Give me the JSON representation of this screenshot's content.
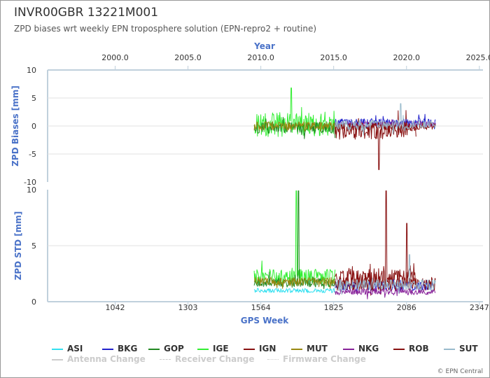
{
  "header": {
    "title": "INVR00GBR 13221M001",
    "subtitle": "ZPD biases wrt weekly EPN troposphere solution (EPN-repro2 + routine)"
  },
  "credit": "© EPN Central",
  "colors": {
    "ASI": "#33e0f0",
    "BKG": "#2222cc",
    "GOP": "#228822",
    "IGE": "#33ee33",
    "IGN": "#881111",
    "MUT": "#998811",
    "NKG": "#882299",
    "ROB": "#881111",
    "SUT": "#99bbcc",
    "muted": "#cccccc",
    "axis_title": "#4a72c8"
  },
  "legend": {
    "items": [
      {
        "label": "ASI",
        "style": "solid"
      },
      {
        "label": "BKG",
        "style": "solid"
      },
      {
        "label": "GOP",
        "style": "solid"
      },
      {
        "label": "IGE",
        "style": "solid"
      },
      {
        "label": "IGN",
        "style": "solid"
      },
      {
        "label": "MUT",
        "style": "solid"
      },
      {
        "label": "NKG",
        "style": "solid"
      },
      {
        "label": "ROB",
        "style": "solid"
      },
      {
        "label": "SUT",
        "style": "solid"
      }
    ],
    "events": [
      {
        "label": "Antenna Change",
        "style": "solid"
      },
      {
        "label": "Receiver Change",
        "style": "dash"
      },
      {
        "label": "Firmware Change",
        "style": "dot"
      }
    ]
  },
  "chart_data": [
    {
      "type": "line",
      "panel": "top",
      "title": "Year",
      "ylabel": "ZPD Biases [mm]",
      "ylim": [
        -10,
        10
      ],
      "yticks": [
        10,
        5,
        0,
        -5,
        -10
      ],
      "x_top_label": "Year",
      "x_top_ticks": [
        "2000.0",
        "2005.0",
        "2010.0",
        "2015.0",
        "2020.0",
        "2025.0"
      ],
      "xlim_gps_week": [
        800,
        2360
      ],
      "series": [
        {
          "name": "IGE",
          "x_range": [
            1540,
            1830
          ],
          "level": 0.3,
          "noise": 2.2,
          "spike_max": 6.8
        },
        {
          "name": "GOP",
          "x_range": [
            1540,
            1830
          ],
          "level": -0.3,
          "noise": 1.0
        },
        {
          "name": "MUT",
          "x_range": [
            1540,
            1830
          ],
          "level": 0.0,
          "noise": 0.8
        },
        {
          "name": "IGN",
          "x_range": [
            1830,
            2120
          ],
          "level": -0.8,
          "noise": 1.6,
          "spike_min": -7.8
        },
        {
          "name": "BKG",
          "x_range": [
            1830,
            2190
          ],
          "level": 0.6,
          "noise": 0.7
        },
        {
          "name": "NKG",
          "x_range": [
            1830,
            2190
          ],
          "level": 0.3,
          "noise": 0.5
        },
        {
          "name": "ROB",
          "x_range": [
            1830,
            2190
          ],
          "level": 0.0,
          "noise": 0.7
        },
        {
          "name": "SUT",
          "x_range": [
            1830,
            2190
          ],
          "level": 0.2,
          "noise": 0.9,
          "spike_max": 4.0
        }
      ]
    },
    {
      "type": "line",
      "panel": "bottom",
      "ylabel": "ZPD STD [mm]",
      "xlabel": "GPS Week",
      "ylim": [
        0,
        10
      ],
      "yticks": [
        10,
        5,
        0
      ],
      "xticks": [
        1042,
        1303,
        1564,
        1825,
        2086,
        2347
      ],
      "xlim_gps_week": [
        800,
        2360
      ],
      "series": [
        {
          "name": "IGE",
          "x_range": [
            1540,
            1830
          ],
          "level": 2.2,
          "noise": 0.7,
          "spike_max": 9.9
        },
        {
          "name": "GOP",
          "x_range": [
            1540,
            1830
          ],
          "level": 1.7,
          "noise": 0.4,
          "spike_max": 9.9
        },
        {
          "name": "MUT",
          "x_range": [
            1540,
            1830
          ],
          "level": 1.8,
          "noise": 0.4
        },
        {
          "name": "ASI",
          "x_range": [
            1540,
            1830
          ],
          "level": 1.0,
          "noise": 0.2
        },
        {
          "name": "IGN",
          "x_range": [
            1830,
            2120
          ],
          "level": 2.2,
          "noise": 0.8,
          "spike_max": 9.9
        },
        {
          "name": "BKG",
          "x_range": [
            1830,
            2190
          ],
          "level": 1.4,
          "noise": 0.4
        },
        {
          "name": "NKG",
          "x_range": [
            1830,
            2190
          ],
          "level": 0.9,
          "noise": 0.3
        },
        {
          "name": "ROB",
          "x_range": [
            1830,
            2190
          ],
          "level": 1.6,
          "noise": 0.6,
          "spike_max": 7.0
        },
        {
          "name": "SUT",
          "x_range": [
            1830,
            2190
          ],
          "level": 1.5,
          "noise": 0.5,
          "spike_max": 4.2
        }
      ]
    }
  ]
}
